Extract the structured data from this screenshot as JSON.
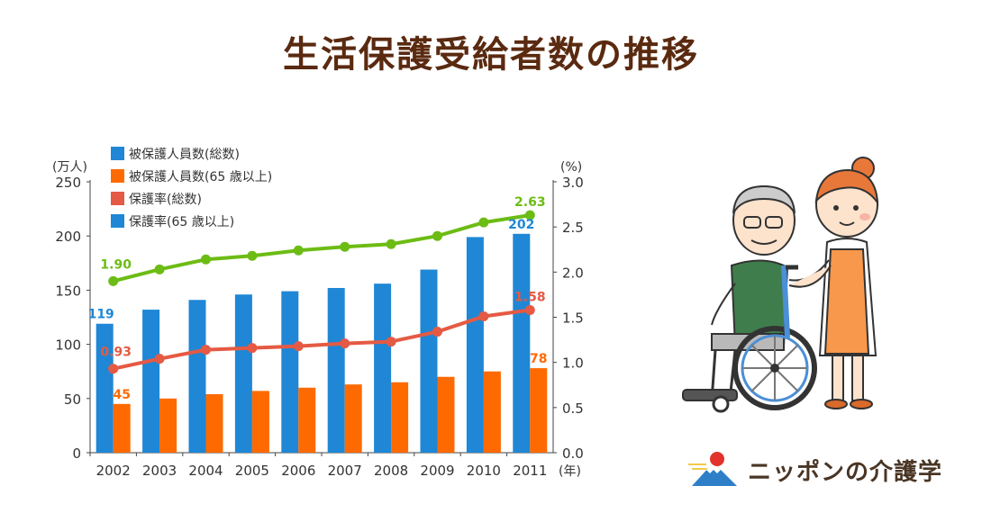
{
  "title": "生活保護受給者数の推移",
  "brand": {
    "name": "ニッポンの介護学"
  },
  "colors": {
    "bar_total": "#1f87d5",
    "bar_65": "#ff6a00",
    "line_total": "#e55a44",
    "line_65": "#6cbc14",
    "title": "#5a2a10"
  },
  "chart_data": {
    "type": "bar",
    "categories": [
      "2002",
      "2003",
      "2004",
      "2005",
      "2006",
      "2007",
      "2008",
      "2009",
      "2010",
      "2011"
    ],
    "left_axis": {
      "unit": "(万人)",
      "ticks": [
        0,
        50,
        100,
        150,
        200,
        250
      ],
      "ylim": [
        0,
        250
      ]
    },
    "right_axis": {
      "unit": "(%)",
      "ticks": [
        "0.0",
        "0.5",
        "1.0",
        "1.5",
        "2.0",
        "2.5",
        "3.0"
      ],
      "ylim": [
        0,
        3
      ]
    },
    "x_unit": "(年)",
    "legend_position": "top-left",
    "legend": [
      "被保護人員数(総数)",
      "被保護人員数(65 歳以上)",
      "保護率(総数)",
      "保護率(65 歳以上)"
    ],
    "series": [
      {
        "name": "被保護人員数(総数)",
        "type": "bar",
        "axis": "left",
        "color": "#1f87d5",
        "values": [
          119,
          132,
          141,
          146,
          149,
          152,
          156,
          169,
          199,
          202
        ]
      },
      {
        "name": "被保護人員数(65 歳以上)",
        "type": "bar",
        "axis": "left",
        "color": "#ff6a00",
        "values": [
          45,
          50,
          54,
          57,
          60,
          63,
          65,
          70,
          75,
          78
        ]
      },
      {
        "name": "保護率(総数)",
        "type": "line",
        "axis": "right",
        "color": "#e55a44",
        "values": [
          0.93,
          1.04,
          1.14,
          1.16,
          1.18,
          1.21,
          1.23,
          1.34,
          1.51,
          1.58
        ]
      },
      {
        "name": "保護率(65 歳以上)",
        "type": "line",
        "axis": "right",
        "color": "#6cbc14",
        "values": [
          1.9,
          2.03,
          2.14,
          2.18,
          2.24,
          2.28,
          2.31,
          2.4,
          2.55,
          2.63
        ]
      }
    ],
    "data_labels": [
      {
        "series": 0,
        "index": 0,
        "text": "119"
      },
      {
        "series": 0,
        "index": 9,
        "text": "202"
      },
      {
        "series": 1,
        "index": 0,
        "text": "45"
      },
      {
        "series": 1,
        "index": 9,
        "text": "78"
      },
      {
        "series": 2,
        "index": 0,
        "text": "0.93"
      },
      {
        "series": 2,
        "index": 9,
        "text": "1.58"
      },
      {
        "series": 3,
        "index": 0,
        "text": "1.90"
      },
      {
        "series": 3,
        "index": 9,
        "text": "2.63"
      }
    ]
  }
}
